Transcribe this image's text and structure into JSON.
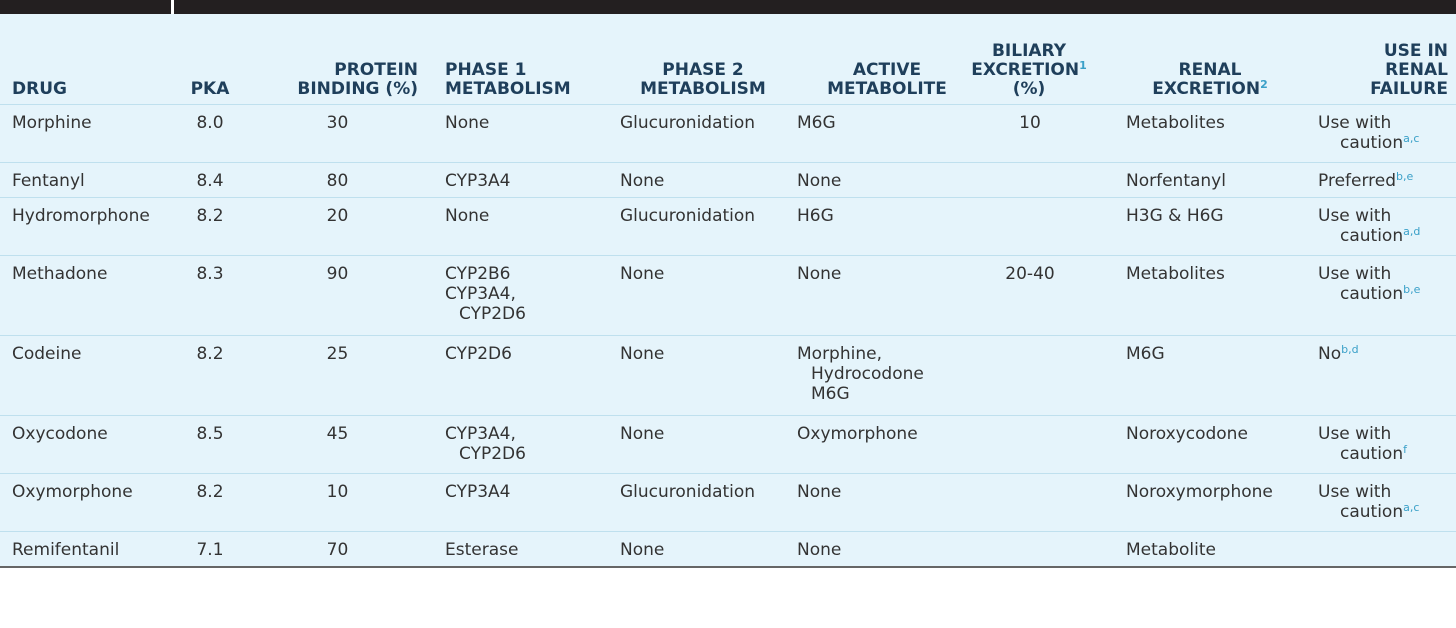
{
  "headers": {
    "drug": "DRUG",
    "pka": "PKA",
    "protein_binding": [
      "PROTEIN",
      "BINDING (%)"
    ],
    "phase1": [
      "PHASE 1",
      "METABOLISM"
    ],
    "phase2": [
      "PHASE 2",
      "METABOLISM"
    ],
    "active": [
      "ACTIVE",
      "METABOLITE"
    ],
    "biliary": [
      "BILIARY",
      "EXCRETION",
      "1",
      "(%)"
    ],
    "renal": [
      "RENAL",
      "EXCRETION",
      "2"
    ],
    "use_renal": [
      "USE IN",
      "RENAL",
      "FAILURE"
    ]
  },
  "rows": [
    {
      "drug": "Morphine",
      "pka": "8.0",
      "protein_binding": "30",
      "phase1": [
        "None"
      ],
      "phase2": "Glucuronidation",
      "active": [
        "M6G"
      ],
      "biliary": "10",
      "renal": "Metabolites",
      "use": [
        "Use with",
        "caution"
      ],
      "use_sup": "a,c"
    },
    {
      "drug": "Fentanyl",
      "pka": "8.4",
      "protein_binding": "80",
      "phase1": [
        "CYP3A4"
      ],
      "phase2": "None",
      "active": [
        "None"
      ],
      "biliary": "",
      "renal": "Norfentanyl",
      "use": [
        "Preferred"
      ],
      "use_sup": "b,e"
    },
    {
      "drug": "Hydromorphone",
      "pka": "8.2",
      "protein_binding": "20",
      "phase1": [
        "None"
      ],
      "phase2": "Glucuronidation",
      "active": [
        "H6G"
      ],
      "biliary": "",
      "renal": "H3G & H6G",
      "use": [
        "Use with",
        "caution"
      ],
      "use_sup": "a,d"
    },
    {
      "drug": "Methadone",
      "pka": "8.3",
      "protein_binding": "90",
      "phase1": [
        "CYP2B6",
        "CYP3A4,",
        "CYP2D6"
      ],
      "phase2": "None",
      "active": [
        "None"
      ],
      "biliary": "20-40",
      "renal": "Metabolites",
      "use": [
        "Use with",
        "caution"
      ],
      "use_sup": "b,e"
    },
    {
      "drug": "Codeine",
      "pka": "8.2",
      "protein_binding": "25",
      "phase1": [
        "CYP2D6"
      ],
      "phase2": "None",
      "active": [
        "Morphine,",
        "Hydrocodone",
        "M6G"
      ],
      "biliary": "",
      "renal": "M6G",
      "use": [
        "No"
      ],
      "use_sup": "b,d"
    },
    {
      "drug": "Oxycodone",
      "pka": "8.5",
      "protein_binding": "45",
      "phase1": [
        "CYP3A4,",
        "CYP2D6"
      ],
      "phase2": "None",
      "active": [
        "Oxymorphone"
      ],
      "biliary": "",
      "renal": "Noroxycodone",
      "use": [
        "Use with",
        "caution"
      ],
      "use_sup": "f"
    },
    {
      "drug": "Oxymorphone",
      "pka": "8.2",
      "protein_binding": "10",
      "phase1": [
        "CYP3A4"
      ],
      "phase2": "Glucuronidation",
      "active": [
        "None"
      ],
      "biliary": "",
      "renal": "Noroxymorphone",
      "use": [
        "Use with",
        "caution"
      ],
      "use_sup": "a,c"
    },
    {
      "drug": "Remifentanil",
      "pka": "7.1",
      "protein_binding": "70",
      "phase1": [
        "Esterase"
      ],
      "phase2": "None",
      "active": [
        "None"
      ],
      "biliary": "",
      "renal": "Metabolite",
      "use": [],
      "use_sup": ""
    }
  ]
}
